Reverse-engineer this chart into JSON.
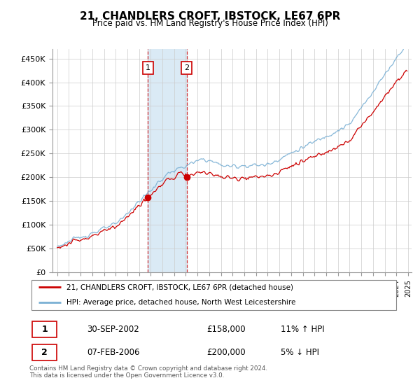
{
  "title": "21, CHANDLERS CROFT, IBSTOCK, LE67 6PR",
  "subtitle": "Price paid vs. HM Land Registry's House Price Index (HPI)",
  "legend_line1": "21, CHANDLERS CROFT, IBSTOCK, LE67 6PR (detached house)",
  "legend_line2": "HPI: Average price, detached house, North West Leicestershire",
  "transaction1_date": "30-SEP-2002",
  "transaction1_price": "£158,000",
  "transaction1_hpi": "11% ↑ HPI",
  "transaction2_date": "07-FEB-2006",
  "transaction2_price": "£200,000",
  "transaction2_hpi": "5% ↓ HPI",
  "footer": "Contains HM Land Registry data © Crown copyright and database right 2024.\nThis data is licensed under the Open Government Licence v3.0.",
  "price_color": "#cc0000",
  "hpi_color": "#7ab0d4",
  "shade_color": "#daeaf5",
  "marker1_x": 2002.75,
  "marker2_x": 2006.08,
  "ylim_min": 0,
  "ylim_max": 470000,
  "xlim_min": 1994.6,
  "xlim_max": 2025.3,
  "yticks": [
    0,
    50000,
    100000,
    150000,
    200000,
    250000,
    300000,
    350000,
    400000,
    450000
  ],
  "ytick_labels": [
    "£0",
    "£50K",
    "£100K",
    "£150K",
    "£200K",
    "£250K",
    "£300K",
    "£350K",
    "£400K",
    "£450K"
  ]
}
